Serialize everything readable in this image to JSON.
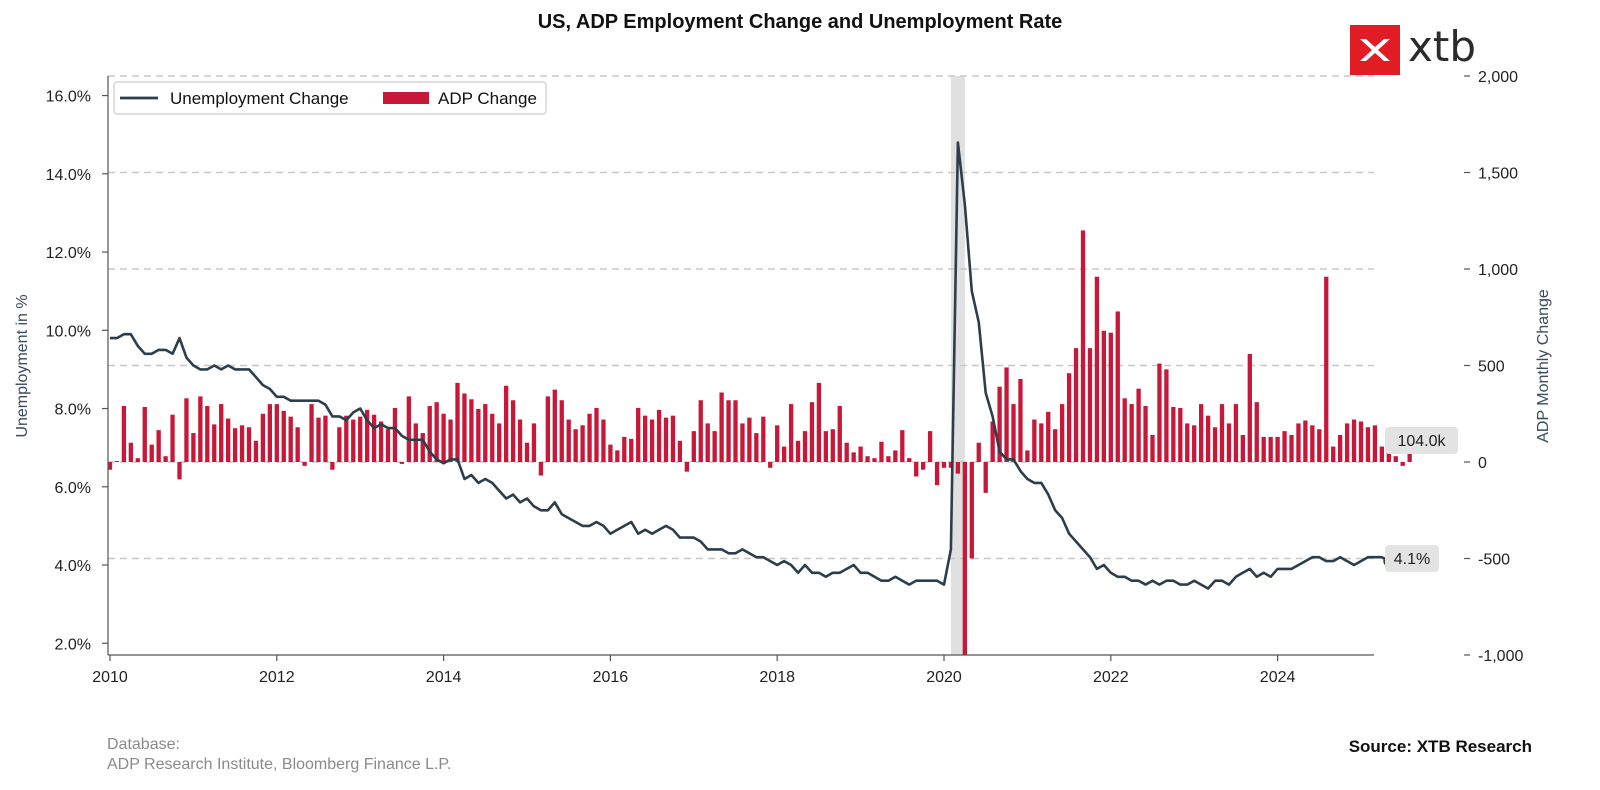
{
  "footer": {
    "database_label": "Database:",
    "database_value": "ADP Research Institute, Bloomberg Finance L.P.",
    "source": "Source: XTB Research"
  },
  "logo": {
    "text": "xtb",
    "icon": "xtb-logo-icon",
    "color": "#e21c24"
  },
  "colors": {
    "line": "#2c3e4c",
    "bar": "#c8183a",
    "grid": "#c8c8c8",
    "shade": "#e0e0e0"
  },
  "chart_data": {
    "type": "bar+line",
    "title": "US, ADP Employment Change and Unemployment Rate",
    "ylabel_left": "Unemployment in %",
    "ylabel_right": "ADP Monthly Change",
    "ylim_left": [
      1.7,
      16.5
    ],
    "ylim_right": [
      -1000,
      2000
    ],
    "left_ticks": [
      "16.0%",
      "14.0%",
      "12.0%",
      "10.0%",
      "8.0%",
      "6.0%",
      "4.0%",
      "2.0%"
    ],
    "left_tick_values": [
      16,
      14,
      12,
      10,
      8,
      6,
      4,
      2
    ],
    "right_ticks": [
      "2,000",
      "1,500",
      "1,000",
      "500",
      "0",
      "-500",
      "-1,000"
    ],
    "right_tick_values": [
      2000,
      1500,
      1000,
      500,
      0,
      -500,
      -1000
    ],
    "x_ticks": [
      "2010",
      "2012",
      "2014",
      "2016",
      "2018",
      "2020",
      "2022",
      "2024"
    ],
    "x_range": [
      "2010-01",
      "2025-07"
    ],
    "shaded_period": [
      "2020-02",
      "2020-04"
    ],
    "legend_position": "top-left",
    "grid": "horizontal dashed",
    "series": [
      {
        "name": "Unemployment Change",
        "type": "line",
        "axis": "left",
        "start": "2010-01",
        "frequency": "monthly",
        "values": [
          9.8,
          9.8,
          9.9,
          9.9,
          9.6,
          9.4,
          9.4,
          9.5,
          9.5,
          9.4,
          9.8,
          9.3,
          9.1,
          9.0,
          9.0,
          9.1,
          9.0,
          9.1,
          9.0,
          9.0,
          9.0,
          8.8,
          8.6,
          8.5,
          8.3,
          8.3,
          8.2,
          8.2,
          8.2,
          8.2,
          8.2,
          8.1,
          7.8,
          7.8,
          7.7,
          7.9,
          8.0,
          7.7,
          7.5,
          7.6,
          7.5,
          7.5,
          7.3,
          7.2,
          7.2,
          7.2,
          6.9,
          6.7,
          6.6,
          6.7,
          6.7,
          6.2,
          6.3,
          6.1,
          6.2,
          6.1,
          5.9,
          5.7,
          5.8,
          5.6,
          5.7,
          5.5,
          5.4,
          5.4,
          5.6,
          5.3,
          5.2,
          5.1,
          5.0,
          5.0,
          5.1,
          5.0,
          4.8,
          4.9,
          5.0,
          5.1,
          4.8,
          4.9,
          4.8,
          4.9,
          5.0,
          4.9,
          4.7,
          4.7,
          4.7,
          4.6,
          4.4,
          4.4,
          4.4,
          4.3,
          4.3,
          4.4,
          4.3,
          4.2,
          4.2,
          4.1,
          4.0,
          4.1,
          4.0,
          3.8,
          4.0,
          3.8,
          3.8,
          3.7,
          3.8,
          3.8,
          3.9,
          4.0,
          3.8,
          3.8,
          3.7,
          3.6,
          3.6,
          3.7,
          3.6,
          3.5,
          3.6,
          3.6,
          3.6,
          3.6,
          3.5,
          4.4,
          14.8,
          13.2,
          11.0,
          10.2,
          8.4,
          7.8,
          6.9,
          6.7,
          6.7,
          6.4,
          6.2,
          6.1,
          6.1,
          5.8,
          5.4,
          5.2,
          4.8,
          4.6,
          4.4,
          4.2,
          3.9,
          4.0,
          3.8,
          3.7,
          3.7,
          3.6,
          3.6,
          3.5,
          3.6,
          3.5,
          3.6,
          3.6,
          3.5,
          3.5,
          3.6,
          3.5,
          3.4,
          3.6,
          3.6,
          3.5,
          3.7,
          3.8,
          3.9,
          3.7,
          3.8,
          3.7,
          3.9,
          3.9,
          3.9,
          4.0,
          4.1,
          4.2,
          4.2,
          4.1,
          4.1,
          4.2,
          4.1,
          4.0,
          4.1,
          4.2,
          4.2,
          4.2,
          4.1
        ],
        "end_label": "4.1%"
      },
      {
        "name": "ADP Change",
        "type": "bar",
        "axis": "right",
        "start": "2010-01",
        "frequency": "monthly",
        "values": [
          -40,
          5,
          290,
          100,
          20,
          285,
          90,
          165,
          30,
          245,
          -90,
          330,
          150,
          340,
          290,
          195,
          300,
          225,
          175,
          190,
          180,
          110,
          250,
          300,
          300,
          265,
          235,
          180,
          -20,
          300,
          230,
          240,
          -40,
          180,
          240,
          220,
          235,
          270,
          245,
          210,
          170,
          280,
          -10,
          340,
          200,
          150,
          290,
          310,
          250,
          220,
          410,
          355,
          325,
          275,
          300,
          250,
          200,
          395,
          320,
          220,
          100,
          200,
          -70,
          340,
          375,
          320,
          220,
          170,
          190,
          250,
          280,
          220,
          90,
          60,
          130,
          120,
          280,
          240,
          220,
          270,
          230,
          240,
          110,
          -50,
          160,
          320,
          200,
          160,
          360,
          320,
          320,
          200,
          230,
          150,
          235,
          -30,
          190,
          80,
          300,
          110,
          160,
          310,
          410,
          160,
          170,
          290,
          100,
          50,
          80,
          30,
          20,
          105,
          30,
          60,
          165,
          20,
          -75,
          -40,
          160,
          -120,
          -30,
          -30,
          -60,
          -1050,
          -500,
          100,
          -160,
          210,
          390,
          490,
          300,
          430,
          60,
          220,
          200,
          260,
          170,
          300,
          460,
          590,
          1200,
          590,
          960,
          680,
          670,
          780,
          330,
          300,
          380,
          290,
          140,
          510,
          480,
          285,
          280,
          200,
          190,
          300,
          240,
          180,
          300,
          200,
          300,
          140,
          560,
          310,
          130,
          130,
          130,
          160,
          140,
          200,
          215,
          190,
          170,
          960,
          80,
          140,
          200,
          220,
          210,
          180,
          190,
          80,
          60,
          30,
          -20,
          104
        ],
        "end_label": "104.0k"
      }
    ]
  }
}
